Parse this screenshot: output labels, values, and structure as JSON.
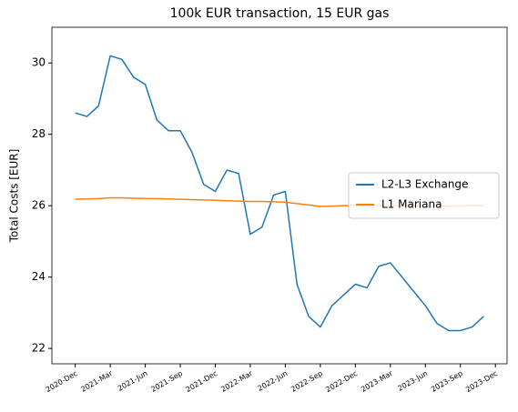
{
  "chart_data": {
    "type": "line",
    "title": "100k EUR transaction, 15 EUR gas",
    "y_label": "Total Costs [EUR]",
    "x": [
      "2020-12",
      "2021-01",
      "2021-02",
      "2021-03",
      "2021-04",
      "2021-05",
      "2021-06",
      "2021-07",
      "2021-08",
      "2021-09",
      "2021-10",
      "2021-11",
      "2021-12",
      "2022-01",
      "2022-02",
      "2022-03",
      "2022-04",
      "2022-05",
      "2022-06",
      "2022-07",
      "2022-08",
      "2022-09",
      "2022-10",
      "2022-11",
      "2022-12",
      "2023-01",
      "2023-02",
      "2023-03",
      "2023-04",
      "2023-05",
      "2023-06",
      "2023-07",
      "2023-08",
      "2023-09",
      "2023-10",
      "2023-11"
    ],
    "series": [
      {
        "name": "L2-L3 Exchange",
        "color": "#1f77b4",
        "values": [
          28.6,
          28.5,
          28.8,
          30.2,
          30.1,
          29.6,
          29.4,
          28.4,
          28.1,
          28.1,
          27.5,
          26.6,
          26.4,
          27.0,
          26.9,
          25.2,
          25.4,
          26.3,
          26.4,
          23.8,
          22.9,
          22.6,
          23.2,
          23.5,
          23.8,
          23.7,
          24.3,
          24.4,
          24.0,
          23.6,
          23.2,
          22.7,
          22.5,
          22.5,
          22.6,
          22.9
        ]
      },
      {
        "name": "L1 Mariana",
        "color": "#ff7f0e",
        "values": [
          26.18,
          26.19,
          26.2,
          26.22,
          26.22,
          26.21,
          26.2,
          26.2,
          26.19,
          26.18,
          26.17,
          26.16,
          26.15,
          26.14,
          26.13,
          26.12,
          26.12,
          26.11,
          26.1,
          26.06,
          26.02,
          25.98,
          25.99,
          26.0,
          26.01,
          26.01,
          26.01,
          26.0,
          26.0,
          26.0,
          26.0,
          26.0,
          25.99,
          25.99,
          26.0,
          26.0
        ]
      }
    ],
    "xlim": [
      "2020-10",
      "2024-01"
    ],
    "xticks": [
      {
        "value": "2020-12",
        "label": "2020-Dec"
      },
      {
        "value": "2021-03",
        "label": "2021-Mar"
      },
      {
        "value": "2021-06",
        "label": "2021-Jun"
      },
      {
        "value": "2021-09",
        "label": "2021-Sep"
      },
      {
        "value": "2021-12",
        "label": "2021-Dec"
      },
      {
        "value": "2022-03",
        "label": "2022-Mar"
      },
      {
        "value": "2022-06",
        "label": "2022-Jun"
      },
      {
        "value": "2022-09",
        "label": "2022-Sep"
      },
      {
        "value": "2022-12",
        "label": "2022-Dec"
      },
      {
        "value": "2023-03",
        "label": "2023-Mar"
      },
      {
        "value": "2023-06",
        "label": "2023-Jun"
      },
      {
        "value": "2023-09",
        "label": "2023-Sep"
      },
      {
        "value": "2023-12",
        "label": "2023-Dec"
      }
    ],
    "ylim": [
      21.57,
      31.0
    ],
    "yticks": [
      22,
      24,
      26,
      28,
      30
    ],
    "legend": "center right"
  }
}
